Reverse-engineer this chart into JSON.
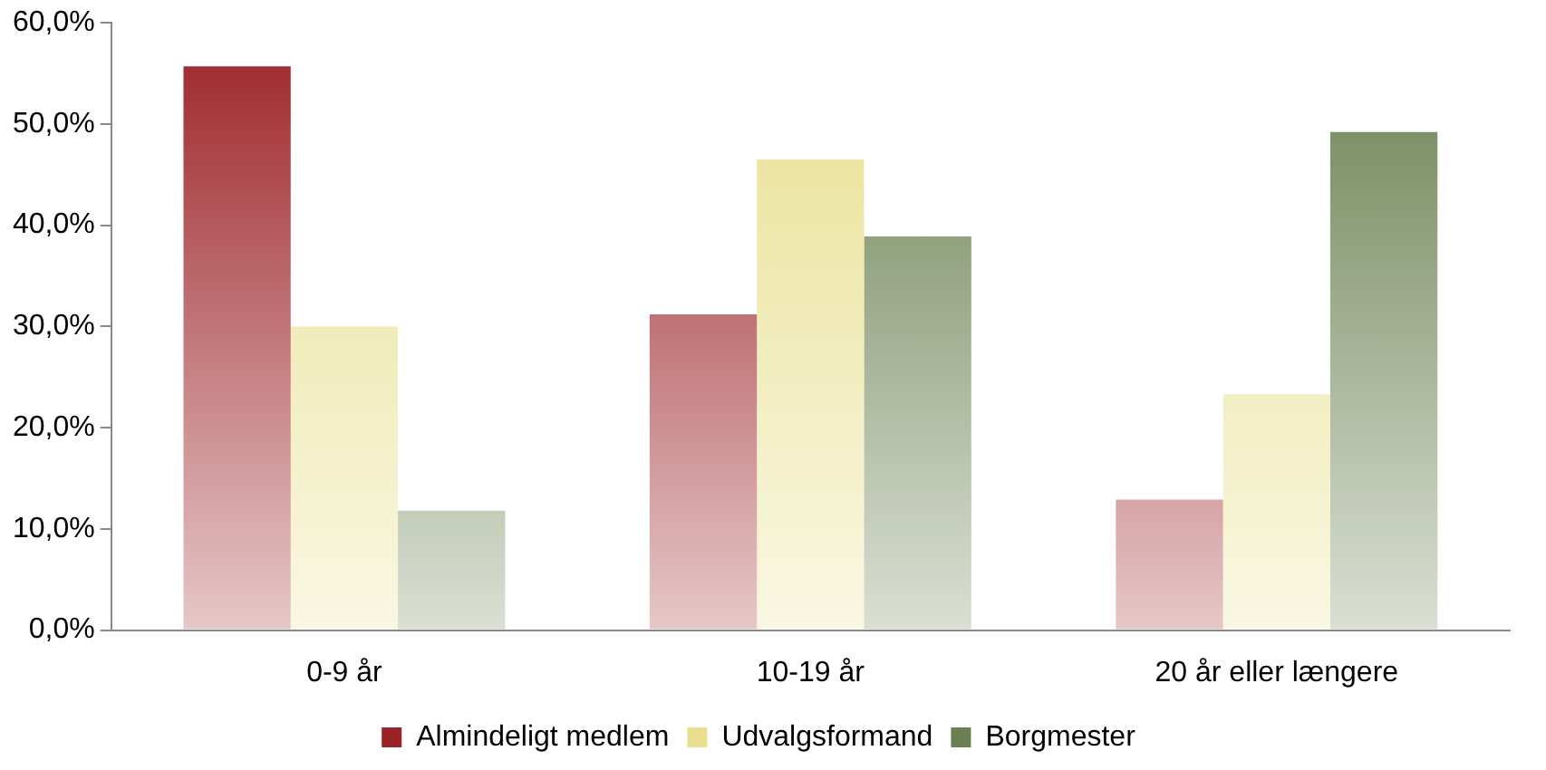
{
  "chart_data": {
    "type": "bar",
    "categories": [
      "0-9 år",
      "10-19 år",
      "20 år eller længere"
    ],
    "series": [
      {
        "name": "Almindeligt medlem",
        "color": "#9b2226",
        "values": [
          55.7,
          31.2,
          12.9
        ]
      },
      {
        "name": "Udvalgsformand",
        "color": "#e8e090",
        "values": [
          30.0,
          46.5,
          23.3
        ]
      },
      {
        "name": "Borgmester",
        "color": "#6b8050",
        "values": [
          11.8,
          38.9,
          49.2
        ]
      }
    ],
    "ylim": [
      0,
      60
    ],
    "yticks": [
      {
        "value": 0,
        "label": "0,0%"
      },
      {
        "value": 10,
        "label": "10,0%"
      },
      {
        "value": 20,
        "label": "20,0%"
      },
      {
        "value": 30,
        "label": "30,0%"
      },
      {
        "value": 40,
        "label": "40,0%"
      },
      {
        "value": 50,
        "label": "50,0%"
      },
      {
        "value": 60,
        "label": "60,0%"
      }
    ],
    "grid": false,
    "legend": "bottom"
  }
}
